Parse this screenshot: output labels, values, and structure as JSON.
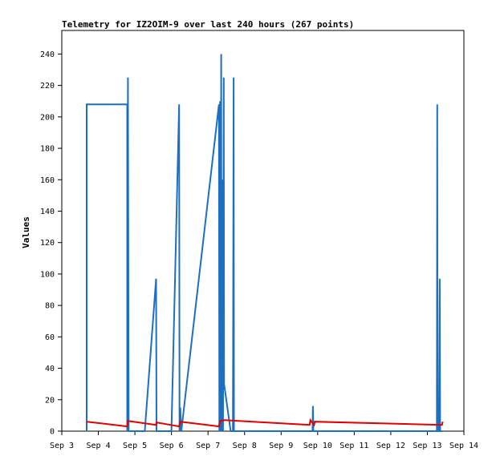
{
  "chart_data": {
    "type": "line",
    "title": "Telemetry for IZ2OIM-9 over last 240 hours (267 points)",
    "xlabel": "",
    "ylabel": "Values",
    "xlim": [
      3.0,
      14.0
    ],
    "ylim": [
      0,
      255
    ],
    "x_unit": "days (Sep)",
    "x_ticks": [
      3,
      4,
      5,
      6,
      7,
      8,
      9,
      10,
      11,
      12,
      13,
      14
    ],
    "x_tick_labels": [
      "Sep 3",
      "Sep 4",
      "Sep 5",
      "Sep 6",
      "Sep 7",
      "Sep 8",
      "Sep 9",
      "Sep 10",
      "Sep 11",
      "Sep 12",
      "Sep 13",
      "Sep 14"
    ],
    "y_ticks": [
      0,
      20,
      40,
      60,
      80,
      100,
      120,
      140,
      160,
      180,
      200,
      220,
      240
    ],
    "grid": false,
    "legend": "none",
    "series": [
      {
        "color": "#1f6fc0",
        "points": [
          [
            3.68,
            0
          ],
          [
            3.68,
            208
          ],
          [
            4.79,
            208
          ],
          [
            4.79,
            0
          ],
          [
            4.81,
            225
          ],
          [
            4.82,
            112
          ],
          [
            4.83,
            0
          ],
          [
            5.27,
            0
          ],
          [
            5.58,
            97
          ],
          [
            5.59,
            0
          ],
          [
            6.0,
            0
          ],
          [
            6.21,
            208
          ],
          [
            6.22,
            0
          ],
          [
            6.24,
            15
          ],
          [
            6.27,
            0
          ],
          [
            7.3,
            208
          ],
          [
            7.31,
            0
          ],
          [
            7.33,
            210
          ],
          [
            7.34,
            0
          ],
          [
            7.36,
            240
          ],
          [
            7.37,
            0
          ],
          [
            7.4,
            160
          ],
          [
            7.41,
            0
          ],
          [
            7.43,
            225
          ],
          [
            7.44,
            30
          ],
          [
            7.62,
            0
          ],
          [
            7.68,
            0
          ],
          [
            7.7,
            225
          ],
          [
            7.71,
            0
          ],
          [
            9.86,
            0
          ],
          [
            9.87,
            16
          ],
          [
            9.88,
            0
          ],
          [
            13.26,
            0
          ],
          [
            13.27,
            208
          ],
          [
            13.28,
            0
          ],
          [
            13.32,
            0
          ],
          [
            13.34,
            97
          ],
          [
            13.35,
            0
          ],
          [
            13.4,
            0
          ]
        ]
      },
      {
        "color": "#e00000",
        "points": [
          [
            3.68,
            6
          ],
          [
            4.79,
            3
          ],
          [
            4.81,
            6.5
          ],
          [
            5.58,
            4
          ],
          [
            5.59,
            5.5
          ],
          [
            6.21,
            3
          ],
          [
            6.24,
            6
          ],
          [
            7.3,
            3
          ],
          [
            7.33,
            6.5
          ],
          [
            7.45,
            7
          ],
          [
            9.78,
            4
          ],
          [
            9.8,
            7
          ],
          [
            9.9,
            4
          ],
          [
            9.92,
            6
          ],
          [
            13.4,
            4
          ],
          [
            13.42,
            6
          ]
        ]
      }
    ]
  }
}
